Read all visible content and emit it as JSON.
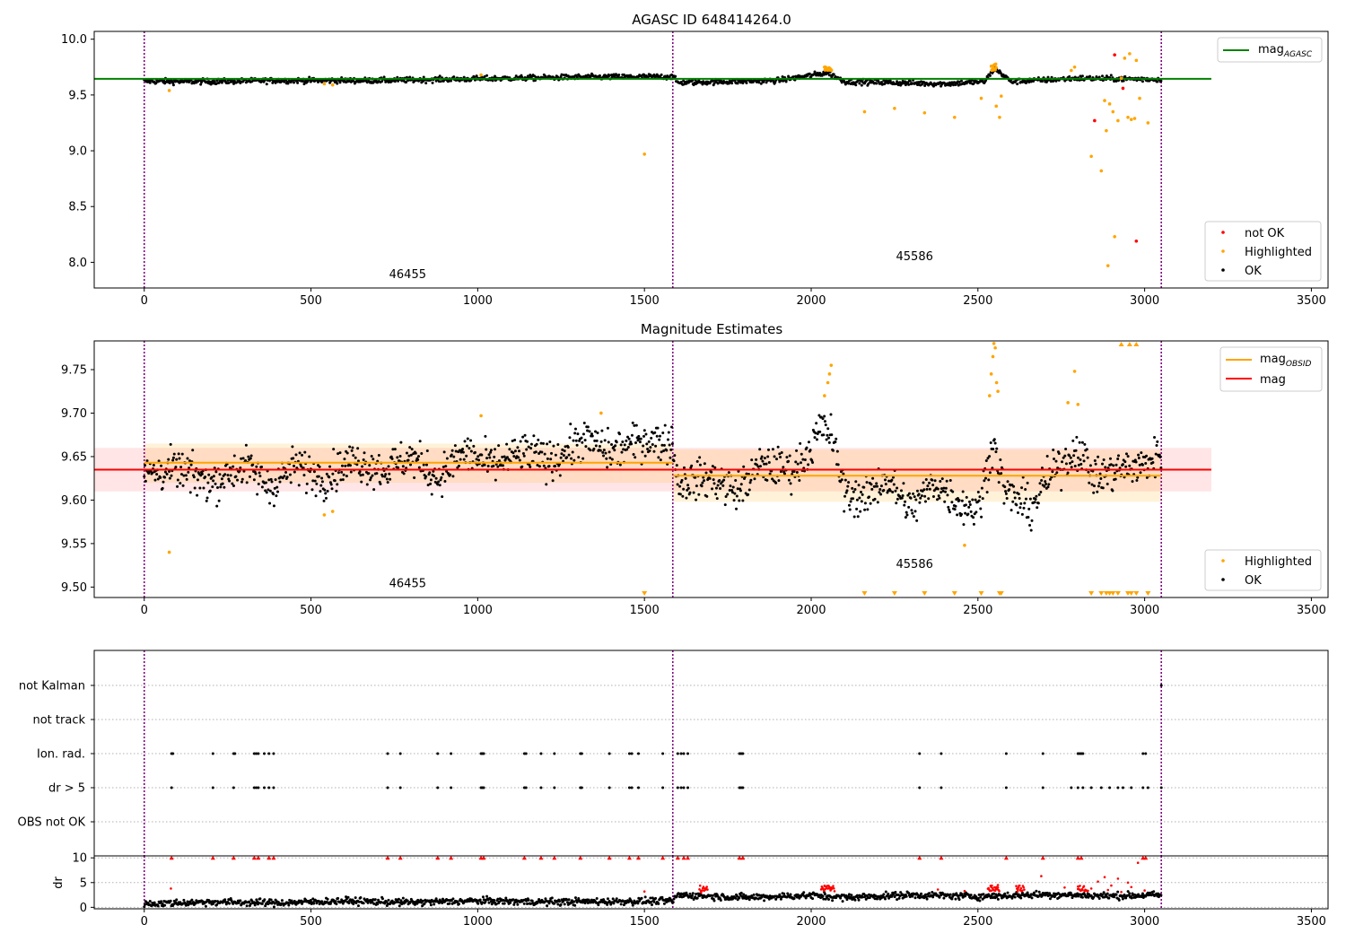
{
  "chart_data": [
    {
      "type": "scatter",
      "title": "AGASC ID 648414264.0",
      "xlim": [
        -150,
        3550
      ],
      "ylim": [
        7.77,
        10.07
      ],
      "x_ticks": [
        "0",
        "500",
        "1000",
        "1500",
        "2000",
        "2500",
        "3000",
        "3500"
      ],
      "y_ticks": [
        "8.0",
        "8.5",
        "9.0",
        "9.5",
        "10.0"
      ],
      "obsid_boundaries": [
        0,
        1585,
        3050
      ],
      "obsid_labels": [
        {
          "text": "46455",
          "x": 790,
          "y": 7.86
        },
        {
          "text": "45586",
          "x": 2310,
          "y": 8.02
        }
      ],
      "legend_lines": [
        "mag",
        "AGASC"
      ],
      "legend_points": [
        "not OK",
        "Highlighted",
        "OK"
      ],
      "mag_agasc": 9.645,
      "mag_agasc_x": [
        -150,
        3200
      ],
      "ok_mean_segments": [
        [
          0,
          9.623
        ],
        [
          200,
          9.62
        ],
        [
          400,
          9.63
        ],
        [
          700,
          9.63
        ],
        [
          1000,
          9.645
        ],
        [
          1300,
          9.66
        ],
        [
          1585,
          9.665
        ],
        [
          1600,
          9.61
        ],
        [
          1900,
          9.63
        ],
        [
          2050,
          9.7
        ],
        [
          2100,
          9.62
        ],
        [
          2400,
          9.6
        ],
        [
          2520,
          9.62
        ],
        [
          2550,
          9.74
        ],
        [
          2600,
          9.62
        ],
        [
          2800,
          9.65
        ],
        [
          3050,
          9.64
        ]
      ],
      "highlighted": [
        [
          75,
          9.54
        ],
        [
          540,
          9.6
        ],
        [
          565,
          9.59
        ],
        [
          1010,
          9.68
        ],
        [
          1500,
          8.97
        ],
        [
          2160,
          9.35
        ],
        [
          2250,
          9.38
        ],
        [
          2340,
          9.34
        ],
        [
          2430,
          9.3
        ],
        [
          2510,
          9.47
        ],
        [
          2555,
          9.4
        ],
        [
          2565,
          9.3
        ],
        [
          2570,
          9.49
        ],
        [
          2780,
          9.72
        ],
        [
          2790,
          9.75
        ],
        [
          2840,
          8.95
        ],
        [
          2870,
          8.82
        ],
        [
          2880,
          9.45
        ],
        [
          2885,
          9.18
        ],
        [
          2890,
          7.97
        ],
        [
          2895,
          9.42
        ],
        [
          2905,
          9.35
        ],
        [
          2910,
          8.23
        ],
        [
          2920,
          9.27
        ],
        [
          2930,
          9.65
        ],
        [
          2940,
          9.83
        ],
        [
          2950,
          9.3
        ],
        [
          2955,
          9.87
        ],
        [
          2960,
          9.28
        ],
        [
          2970,
          9.29
        ],
        [
          2975,
          9.81
        ],
        [
          2985,
          9.47
        ],
        [
          3010,
          9.25
        ]
      ],
      "not_ok": [
        [
          2850,
          9.27
        ],
        [
          2910,
          9.86
        ],
        [
          2935,
          9.56
        ],
        [
          2975,
          8.19
        ]
      ]
    },
    {
      "type": "scatter",
      "title": "Magnitude Estimates",
      "xlim": [
        -150,
        3550
      ],
      "ylim": [
        9.488,
        9.783
      ],
      "x_ticks": [
        "0",
        "500",
        "1000",
        "1500",
        "2000",
        "2500",
        "3000",
        "3500"
      ],
      "y_ticks": [
        "9.50",
        "9.55",
        "9.60",
        "9.65",
        "9.70",
        "9.75"
      ],
      "obsid_boundaries": [
        0,
        1585,
        3050
      ],
      "obsid_labels": [
        {
          "text": "46455",
          "x": 790,
          "y": 9.5
        },
        {
          "text": "45586",
          "x": 2310,
          "y": 9.522
        }
      ],
      "legend_lines": [
        [
          "mag",
          "OBSID"
        ],
        [
          "mag",
          ""
        ]
      ],
      "legend_points": [
        "Highlighted",
        "OK"
      ],
      "mag": 9.635,
      "mag_band": [
        9.61,
        9.66
      ],
      "mag_x": [
        -150,
        3200
      ],
      "obsid_mags": [
        {
          "x": [
            0,
            1585
          ],
          "mag": 9.643,
          "band": [
            9.62,
            9.665
          ]
        },
        {
          "x": [
            1585,
            3050
          ],
          "mag": 9.628,
          "band": [
            9.598,
            9.658
          ]
        }
      ],
      "ok_segments": [
        [
          0,
          9.63
        ],
        [
          100,
          9.635
        ],
        [
          200,
          9.62
        ],
        [
          300,
          9.64
        ],
        [
          380,
          9.615
        ],
        [
          450,
          9.64
        ],
        [
          540,
          9.625
        ],
        [
          620,
          9.645
        ],
        [
          720,
          9.635
        ],
        [
          800,
          9.65
        ],
        [
          880,
          9.625
        ],
        [
          960,
          9.655
        ],
        [
          1040,
          9.64
        ],
        [
          1140,
          9.655
        ],
        [
          1220,
          9.645
        ],
        [
          1320,
          9.67
        ],
        [
          1400,
          9.655
        ],
        [
          1500,
          9.67
        ],
        [
          1585,
          9.665
        ],
        [
          1600,
          9.62
        ],
        [
          1700,
          9.625
        ],
        [
          1780,
          9.61
        ],
        [
          1850,
          9.64
        ],
        [
          1950,
          9.635
        ],
        [
          2000,
          9.66
        ],
        [
          2030,
          9.685
        ],
        [
          2060,
          9.675
        ],
        [
          2100,
          9.61
        ],
        [
          2160,
          9.6
        ],
        [
          2220,
          9.625
        ],
        [
          2300,
          9.59
        ],
        [
          2370,
          9.62
        ],
        [
          2450,
          9.595
        ],
        [
          2500,
          9.59
        ],
        [
          2520,
          9.62
        ],
        [
          2545,
          9.67
        ],
        [
          2580,
          9.61
        ],
        [
          2660,
          9.59
        ],
        [
          2700,
          9.62
        ],
        [
          2760,
          9.645
        ],
        [
          2800,
          9.66
        ],
        [
          2850,
          9.625
        ],
        [
          2920,
          9.635
        ],
        [
          3000,
          9.64
        ],
        [
          3050,
          9.655
        ]
      ],
      "highlighted": [
        [
          75,
          9.54
        ],
        [
          540,
          9.583
        ],
        [
          565,
          9.587
        ],
        [
          1010,
          9.697
        ],
        [
          1370,
          9.7
        ],
        [
          2040,
          9.72
        ],
        [
          2050,
          9.735
        ],
        [
          2055,
          9.745
        ],
        [
          2060,
          9.755
        ],
        [
          2535,
          9.72
        ],
        [
          2540,
          9.745
        ],
        [
          2545,
          9.765
        ],
        [
          2548,
          9.78
        ],
        [
          2552,
          9.775
        ],
        [
          2556,
          9.735
        ],
        [
          2560,
          9.725
        ],
        [
          2460,
          9.548
        ],
        [
          2770,
          9.712
        ],
        [
          2790,
          9.748
        ],
        [
          2800,
          9.71
        ]
      ],
      "highlighted_below_range_x": [
        1500,
        2160,
        2250,
        2340,
        2430,
        2510,
        2565,
        2570,
        2840,
        2870,
        2885,
        2895,
        2905,
        2920,
        2950,
        2960,
        2975,
        3010
      ],
      "highlighted_above_range_x": [
        2930,
        2955,
        2975
      ]
    },
    {
      "type": "scatter",
      "title": "",
      "xlim": [
        -150,
        3550
      ],
      "x_ticks": [
        "0",
        "500",
        "1000",
        "1500",
        "2000",
        "2500",
        "3000",
        "3500"
      ],
      "flag_rows": [
        "not Kalman",
        "not track",
        "Ion. rad.",
        "dr > 5",
        "OBS not OK"
      ],
      "obsid_boundaries": [
        0,
        1585,
        3050
      ],
      "flag_times": {
        "not Kalman": [
          3050
        ],
        "not track": [],
        "Ion. rad.": [
          82,
          86,
          206,
          268,
          272,
          330,
          336,
          342,
          360,
          374,
          388,
          730,
          768,
          880,
          920,
          1010,
          1014,
          1018,
          1140,
          1145,
          1190,
          1230,
          1308,
          1312,
          1395,
          1455,
          1462,
          1482,
          1555,
          1600,
          1610,
          1618,
          1630,
          1785,
          1790,
          1795,
          2325,
          2390,
          2585,
          2695,
          2800,
          2805,
          2810,
          2815,
          2995,
          3003
        ],
        "dr > 5": [
          82,
          206,
          268,
          330,
          336,
          342,
          360,
          374,
          388,
          730,
          768,
          880,
          920,
          1010,
          1014,
          1018,
          1140,
          1145,
          1190,
          1230,
          1308,
          1312,
          1395,
          1455,
          1462,
          1482,
          1555,
          1600,
          1610,
          1618,
          1630,
          1785,
          1790,
          1795,
          2325,
          2390,
          2585,
          2695,
          2780,
          2800,
          2815,
          2840,
          2870,
          2895,
          2920,
          2935,
          2960,
          2995,
          3010,
          3050
        ],
        "OBS not OK": []
      }
    },
    {
      "type": "scatter",
      "title": "",
      "xlim": [
        -150,
        3550
      ],
      "ylim": [
        -0.3,
        10.4
      ],
      "ylabel": "dr",
      "x_ticks": [
        "0",
        "500",
        "1000",
        "1500",
        "2000",
        "2500",
        "3000",
        "3500"
      ],
      "y_ticks": [
        "0",
        "5",
        "10"
      ],
      "obsid_boundaries": [
        0,
        1585,
        3050
      ],
      "dr_segments": [
        [
          0,
          0.7
        ],
        [
          200,
          1.1
        ],
        [
          400,
          0.9
        ],
        [
          600,
          1.3
        ],
        [
          800,
          1.0
        ],
        [
          1000,
          1.3
        ],
        [
          1200,
          1.1
        ],
        [
          1400,
          1.2
        ],
        [
          1585,
          1.3
        ],
        [
          1600,
          2.5
        ],
        [
          1800,
          2.0
        ],
        [
          2000,
          2.4
        ],
        [
          2100,
          2.0
        ],
        [
          2300,
          2.5
        ],
        [
          2500,
          2.2
        ],
        [
          2700,
          2.6
        ],
        [
          2900,
          2.3
        ],
        [
          3050,
          2.5
        ]
      ],
      "dr_clipped_x": [
        82,
        206,
        268,
        330,
        342,
        374,
        388,
        730,
        768,
        880,
        920,
        1010,
        1018,
        1140,
        1190,
        1230,
        1308,
        1395,
        1455,
        1482,
        1555,
        1600,
        1618,
        1630,
        1785,
        1795,
        2325,
        2390,
        2585,
        2695,
        2800,
        2810,
        2995,
        3003
      ],
      "dr_high": [
        [
          80,
          3.8
        ],
        [
          1500,
          3.2
        ],
        [
          1670,
          3.0
        ],
        [
          2040,
          4.3
        ],
        [
          2060,
          4.0
        ],
        [
          2380,
          3.6
        ],
        [
          2460,
          3.3
        ],
        [
          2540,
          4.1
        ],
        [
          2560,
          4.5
        ],
        [
          2620,
          3.6
        ],
        [
          2690,
          6.3
        ],
        [
          2760,
          4.0
        ],
        [
          2800,
          3.7
        ],
        [
          2840,
          3.8
        ],
        [
          2860,
          5.2
        ],
        [
          2880,
          6.1
        ],
        [
          2890,
          3.5
        ],
        [
          2900,
          4.4
        ],
        [
          2920,
          5.8
        ],
        [
          2930,
          3.1
        ],
        [
          2950,
          5.0
        ],
        [
          2960,
          4.1
        ],
        [
          2980,
          9.0
        ],
        [
          3000,
          3.4
        ]
      ]
    }
  ]
}
